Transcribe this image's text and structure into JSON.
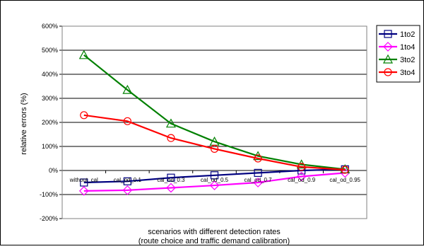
{
  "chart_data": {
    "type": "line",
    "title": "",
    "xlabel_lines": [
      "scenarios with different detection rates",
      "(route choice and traffic demand calibration)"
    ],
    "ylabel": "relative errors (%)",
    "ylim": [
      -200,
      600
    ],
    "y_ticks": [
      -200,
      -100,
      0,
      100,
      200,
      300,
      400,
      500,
      600
    ],
    "y_tick_labels": [
      "-200%",
      "-100%",
      "0%",
      "100%",
      "200%",
      "300%",
      "400%",
      "500%",
      "600%"
    ],
    "grid": "horizontal",
    "legend_position": "right",
    "categories": [
      "without_cal",
      "cal_od_0.1",
      "cal_od_0.3",
      "cal_od_0.5",
      "cal_od_0.7",
      "cal_od_0.9",
      "cal_od_0.95"
    ],
    "series": [
      {
        "name": "1to2",
        "color": "#000080",
        "marker": "square",
        "values": [
          -50,
          -45,
          -30,
          -20,
          -10,
          0,
          5
        ]
      },
      {
        "name": "1to4",
        "color": "#ff00ff",
        "marker": "diamond",
        "values": [
          -85,
          -82,
          -72,
          -62,
          -50,
          -25,
          -10
        ]
      },
      {
        "name": "3to2",
        "color": "#008000",
        "marker": "triangle",
        "values": [
          480,
          335,
          195,
          120,
          60,
          25,
          5
        ]
      },
      {
        "name": "3to4",
        "color": "#ff0000",
        "marker": "circle",
        "values": [
          230,
          205,
          135,
          90,
          50,
          15,
          3
        ]
      }
    ]
  }
}
